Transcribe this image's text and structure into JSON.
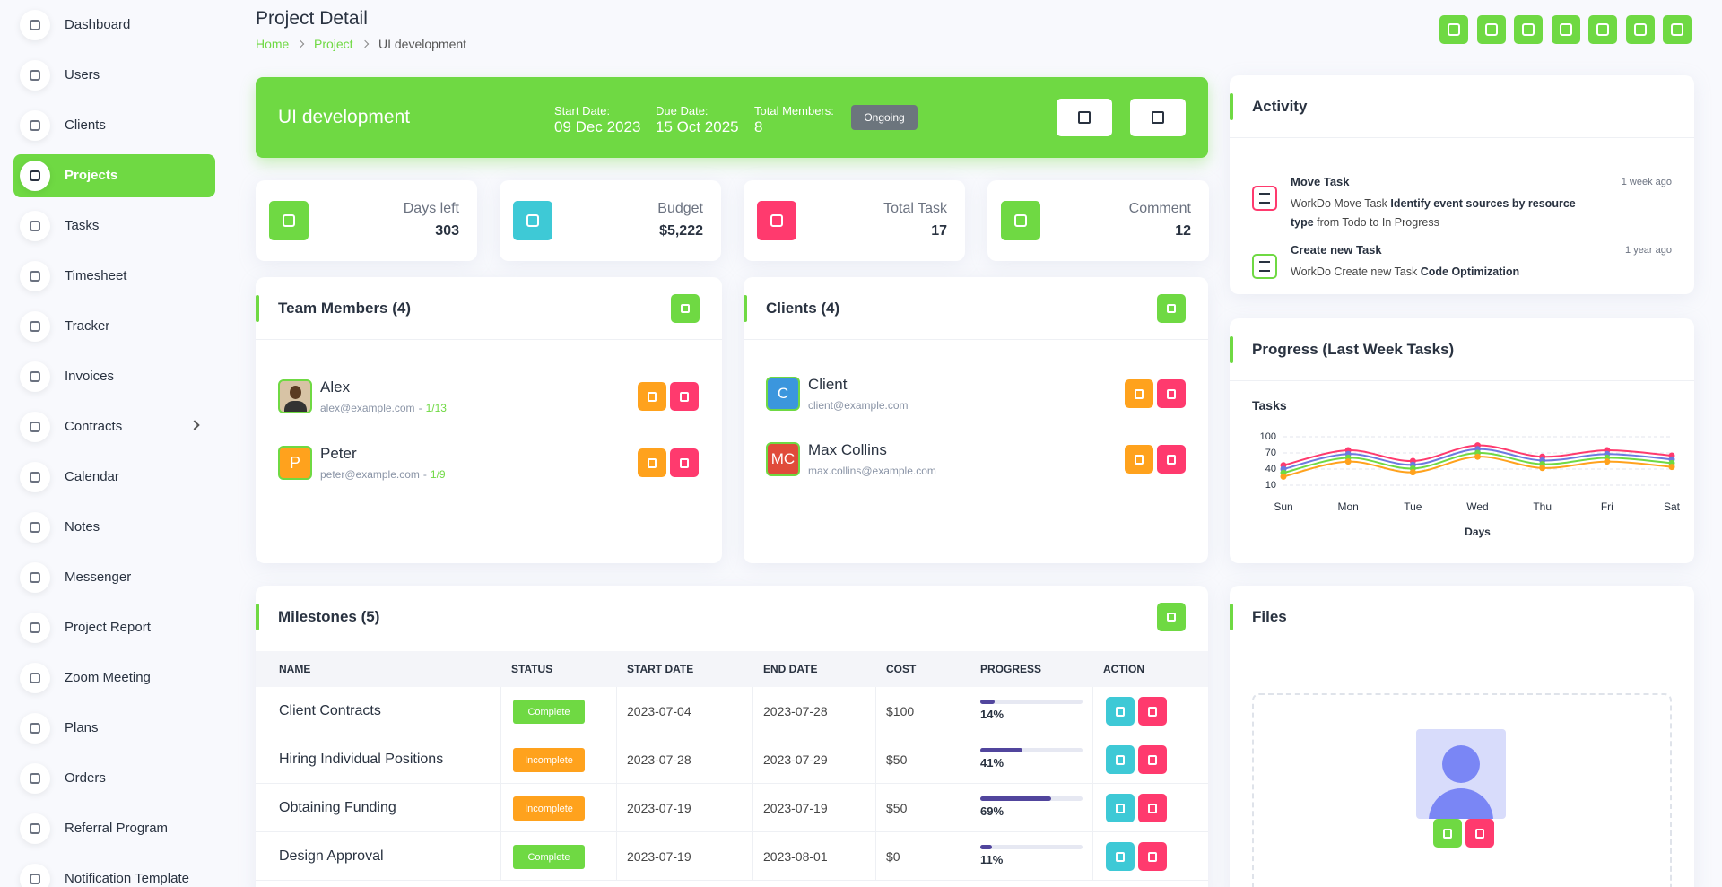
{
  "sidebar": {
    "items": [
      "Dashboard",
      "Users",
      "Clients",
      "Projects",
      "Tasks",
      "Timesheet",
      "Tracker",
      "Invoices",
      "Contracts",
      "Calendar",
      "Notes",
      "Messenger",
      "Project Report",
      "Zoom Meeting",
      "Plans",
      "Orders",
      "Referral Program",
      "Notification Template"
    ],
    "active": 3,
    "submenu": 8
  },
  "header": {
    "title": "Project Detail",
    "breadcrumb": [
      "Home",
      "Project",
      "UI development"
    ]
  },
  "project": {
    "name": "UI development",
    "start_label": "Start Date:",
    "start": "09 Dec 2023",
    "due_label": "Due Date:",
    "due": "15 Oct 2025",
    "members_label": "Total Members:",
    "members": "8",
    "status": "Ongoing"
  },
  "stats": [
    {
      "label": "Days left",
      "value": "303",
      "color": "#6fd943"
    },
    {
      "label": "Budget",
      "value": "$5,222",
      "color": "#3ec9d6"
    },
    {
      "label": "Total Task",
      "value": "17",
      "color": "#ff3a6e"
    },
    {
      "label": "Comment",
      "value": "12",
      "color": "#6fd943"
    }
  ],
  "team": {
    "title": "Team Members (4)",
    "separator": "-",
    "members": [
      {
        "name": "Alex",
        "email": "alex@example.com",
        "tasks": "1/13"
      },
      {
        "name": "Peter",
        "email": "peter@example.com",
        "tasks": "1/9",
        "initials": "P"
      }
    ]
  },
  "clients": {
    "title": "Clients (4)",
    "items": [
      {
        "name": "Client",
        "email": "client@example.com",
        "initials": "C",
        "color": "#3b96dd"
      },
      {
        "name": "Max Collins",
        "email": "max.collins@example.com",
        "initials": "MC",
        "color": "#e04b3a"
      }
    ]
  },
  "milestones": {
    "title": "Milestones (5)",
    "columns": [
      "NAME",
      "STATUS",
      "START DATE",
      "END DATE",
      "COST",
      "PROGRESS",
      "ACTION"
    ],
    "rows": [
      {
        "name": "Client Contracts",
        "status": "Complete",
        "start": "2023-07-04",
        "end": "2023-07-28",
        "cost": "$100",
        "progress": 14,
        "progress_label": "14%"
      },
      {
        "name": "Hiring Individual Positions",
        "status": "Incomplete",
        "start": "2023-07-28",
        "end": "2023-07-29",
        "cost": "$50",
        "progress": 41,
        "progress_label": "41%"
      },
      {
        "name": "Obtaining Funding",
        "status": "Incomplete",
        "start": "2023-07-19",
        "end": "2023-07-19",
        "cost": "$50",
        "progress": 69,
        "progress_label": "69%"
      },
      {
        "name": "Design Approval",
        "status": "Complete",
        "start": "2023-07-19",
        "end": "2023-08-01",
        "cost": "$0",
        "progress": 11,
        "progress_label": "11%"
      }
    ]
  },
  "activity": {
    "title": "Activity",
    "items": [
      {
        "title": "Move Task",
        "time": "1 week ago",
        "color": "#ff3a6e",
        "segments": [
          {
            "t": "WorkDo Move Task ",
            "b": false
          },
          {
            "t": "Identify event sources by resource type",
            "b": true
          },
          {
            "t": " from Todo to In Progress",
            "b": false
          }
        ]
      },
      {
        "title": "Create new Task",
        "time": "1 year ago",
        "color": "#6fd943",
        "segments": [
          {
            "t": "WorkDo Create new Task ",
            "b": false
          },
          {
            "t": "Code Optimization",
            "b": true
          }
        ]
      }
    ]
  },
  "progress_chart": {
    "title": "Progress (Last Week Tasks)",
    "label": "Tasks",
    "x_label": "Days",
    "categories": [
      "Sun",
      "Mon",
      "Tue",
      "Wed",
      "Thu",
      "Fri",
      "Sat"
    ],
    "ylim": [
      10,
      100
    ],
    "yticks": [
      10,
      40,
      70,
      100
    ],
    "series": [
      {
        "color": "#ff3a6e",
        "values": [
          47,
          75,
          55,
          84,
          63,
          75,
          65
        ]
      },
      {
        "color": "#6c7ae0",
        "values": [
          40,
          68,
          48,
          77,
          56,
          68,
          58
        ]
      },
      {
        "color": "#6fd943",
        "values": [
          33,
          61,
          41,
          70,
          49,
          61,
          51
        ]
      },
      {
        "color": "#ffa21d",
        "values": [
          26,
          54,
          34,
          63,
          42,
          54,
          44
        ]
      }
    ]
  },
  "files": {
    "title": "Files"
  }
}
